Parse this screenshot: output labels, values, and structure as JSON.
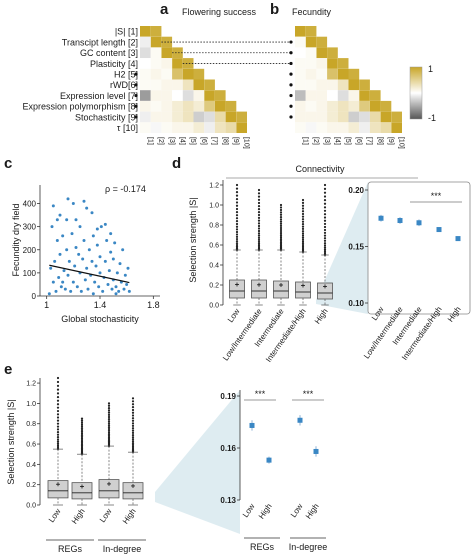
{
  "colors": {
    "gold": "#c8a628",
    "gray_dark": "#5a5a5a",
    "blue_point": "#3a87c4",
    "light_blue": "#d8e9ef",
    "box_fill": "#d0d0d0"
  },
  "panel_a": {
    "letter": "a",
    "title": "Flowering success",
    "row_labels": [
      "|S| [1]",
      "Transcipt length [2]",
      "GC content [3]",
      "Plasticity [4]",
      "H2 [5]",
      "rWD[6]",
      "Expression level [7]",
      "Expression polymorphism [8]",
      "Stochasticity [9]",
      "τ [10]"
    ],
    "col_labels": [
      "[1]",
      "[2]",
      "[3]",
      "[4]",
      "[5]",
      "[6]",
      "[7]",
      "[8]",
      "[9]",
      "[10]"
    ]
  },
  "panel_b": {
    "letter": "b",
    "title": "Fecundity",
    "col_labels": [
      "[1]",
      "[2]",
      "[3]",
      "[4]",
      "[5]",
      "[6]",
      "[7]",
      "[8]",
      "[9]",
      "[10]"
    ]
  },
  "colorbar": {
    "max_label": "1",
    "min_label": "-1"
  },
  "panel_c": {
    "letter": "c",
    "rho_label": "ρ = -0.174",
    "xlabel": "Global stochasticity",
    "ylabel": "Fecundity dry field",
    "xticks": [
      "1",
      "1.4",
      "1.8"
    ],
    "yticks": [
      "0",
      "100",
      "200",
      "300",
      "400"
    ]
  },
  "panel_d": {
    "letter": "d",
    "header": "Connectivity",
    "ylabel": "Selection strength |S|",
    "box_yticks": [
      "0.0",
      "0.2",
      "0.4",
      "0.6",
      "0.8",
      "1.0",
      "1.2"
    ],
    "categories": [
      "Low",
      "Low/Intermediate",
      "Intermediate",
      "Intermediate/High",
      "High"
    ],
    "zoom_yticks": [
      "0.10",
      "0.15",
      "0.20"
    ],
    "sig_label": "***"
  },
  "panel_e": {
    "letter": "e",
    "ylabel": "Selection strength |S|",
    "box_yticks": [
      "0.0",
      "0.2",
      "0.4",
      "0.6",
      "0.8",
      "1.0",
      "1.2"
    ],
    "categories": [
      "Low",
      "High",
      "Low",
      "High"
    ],
    "groups": [
      "REGs",
      "In-degree"
    ],
    "zoom_yticks": [
      "0.13",
      "0.16",
      "0.19"
    ],
    "sig_labels": [
      "***",
      "***"
    ]
  },
  "chart_data": [
    {
      "type": "heatmap",
      "title": "Flowering success",
      "labels": [
        "|S| [1]",
        "Transcipt length [2]",
        "GC content [3]",
        "Plasticity [4]",
        "H2 [5]",
        "rWD[6]",
        "Expression level [7]",
        "Expression polymorphism [8]",
        "Stochasticity [9]",
        "τ [10]"
      ],
      "scale": [
        -1,
        1
      ],
      "lower_triangle_cells": [
        [
          2,
          1,
          -0.1
        ],
        [
          3,
          1,
          -0.2
        ],
        [
          3,
          2,
          0.05
        ],
        [
          4,
          1,
          0.0
        ],
        [
          4,
          2,
          0.05
        ],
        [
          4,
          3,
          0.1
        ],
        [
          5,
          1,
          0.05
        ],
        [
          5,
          2,
          0.1
        ],
        [
          5,
          3,
          0.05
        ],
        [
          5,
          4,
          0.7
        ],
        [
          6,
          1,
          0.05
        ],
        [
          6,
          2,
          0.05
        ],
        [
          6,
          3,
          0.1
        ],
        [
          6,
          4,
          0.1
        ],
        [
          6,
          5,
          0.3
        ],
        [
          7,
          1,
          -0.6
        ],
        [
          7,
          2,
          0.1
        ],
        [
          7,
          3,
          0.1
        ],
        [
          7,
          4,
          0.0
        ],
        [
          7,
          5,
          -0.2
        ],
        [
          7,
          6,
          0.1
        ],
        [
          8,
          1,
          0.1
        ],
        [
          8,
          2,
          0.05
        ],
        [
          8,
          3,
          0.1
        ],
        [
          8,
          4,
          0.2
        ],
        [
          8,
          5,
          0.3
        ],
        [
          8,
          6,
          0.2
        ],
        [
          8,
          7,
          0.6
        ],
        [
          9,
          1,
          -0.1
        ],
        [
          9,
          2,
          0.1
        ],
        [
          9,
          3,
          0.1
        ],
        [
          9,
          4,
          0.2
        ],
        [
          9,
          5,
          0.3
        ],
        [
          9,
          6,
          -0.3
        ],
        [
          9,
          7,
          -0.2
        ],
        [
          9,
          8,
          0.4
        ],
        [
          10,
          1,
          0.05
        ],
        [
          10,
          2,
          -0.05
        ],
        [
          10,
          3,
          0.05
        ],
        [
          10,
          4,
          0.1
        ],
        [
          10,
          5,
          0.1
        ],
        [
          10,
          6,
          0.2
        ],
        [
          10,
          7,
          -0.1
        ],
        [
          10,
          8,
          0.3
        ],
        [
          10,
          9,
          0.4
        ]
      ]
    },
    {
      "type": "heatmap",
      "title": "Fecundity",
      "scale": [
        -1,
        1
      ],
      "lower_triangle_cells": [
        [
          2,
          1,
          0.05
        ],
        [
          3,
          1,
          0.0
        ],
        [
          3,
          2,
          0.05
        ],
        [
          4,
          1,
          0.05
        ],
        [
          4,
          2,
          0.05
        ],
        [
          4,
          3,
          0.1
        ],
        [
          5,
          1,
          0.05
        ],
        [
          5,
          2,
          0.1
        ],
        [
          5,
          3,
          0.05
        ],
        [
          5,
          4,
          0.7
        ],
        [
          6,
          1,
          0.05
        ],
        [
          6,
          2,
          0.05
        ],
        [
          6,
          3,
          0.1
        ],
        [
          6,
          4,
          0.1
        ],
        [
          6,
          5,
          0.3
        ],
        [
          7,
          1,
          -0.4
        ],
        [
          7,
          2,
          0.1
        ],
        [
          7,
          3,
          0.1
        ],
        [
          7,
          4,
          0.0
        ],
        [
          7,
          5,
          -0.2
        ],
        [
          7,
          6,
          0.1
        ],
        [
          8,
          1,
          0.1
        ],
        [
          8,
          2,
          0.05
        ],
        [
          8,
          3,
          0.1
        ],
        [
          8,
          4,
          0.2
        ],
        [
          8,
          5,
          0.3
        ],
        [
          8,
          6,
          0.2
        ],
        [
          8,
          7,
          0.6
        ],
        [
          9,
          1,
          0.1
        ],
        [
          9,
          2,
          0.1
        ],
        [
          9,
          3,
          0.1
        ],
        [
          9,
          4,
          0.2
        ],
        [
          9,
          5,
          0.3
        ],
        [
          9,
          6,
          -0.3
        ],
        [
          9,
          7,
          -0.2
        ],
        [
          9,
          8,
          0.4
        ],
        [
          10,
          1,
          0.05
        ],
        [
          10,
          2,
          -0.05
        ],
        [
          10,
          3,
          0.05
        ],
        [
          10,
          4,
          0.1
        ],
        [
          10,
          5,
          0.1
        ],
        [
          10,
          6,
          0.2
        ],
        [
          10,
          7,
          -0.1
        ],
        [
          10,
          8,
          0.3
        ],
        [
          10,
          9,
          0.4
        ]
      ]
    },
    {
      "type": "scatter",
      "xlabel": "Global stochasticity",
      "ylabel": "Fecundity dry field",
      "xlim": [
        0.95,
        1.85
      ],
      "ylim": [
        0,
        480
      ],
      "trend": {
        "x": [
          1.02,
          1.62
        ],
        "y": [
          133,
          58
        ]
      },
      "points": [
        [
          1.02,
          10
        ],
        [
          1.03,
          120
        ],
        [
          1.04,
          300
        ],
        [
          1.05,
          60
        ],
        [
          1.05,
          390
        ],
        [
          1.06,
          150
        ],
        [
          1.07,
          20
        ],
        [
          1.08,
          240
        ],
        [
          1.09,
          80
        ],
        [
          1.1,
          180
        ],
        [
          1.1,
          350
        ],
        [
          1.11,
          40
        ],
        [
          1.12,
          260
        ],
        [
          1.13,
          110
        ],
        [
          1.14,
          30
        ],
        [
          1.15,
          200
        ],
        [
          1.15,
          330
        ],
        [
          1.16,
          90
        ],
        [
          1.17,
          150
        ],
        [
          1.18,
          20
        ],
        [
          1.19,
          270
        ],
        [
          1.2,
          60
        ],
        [
          1.2,
          400
        ],
        [
          1.21,
          130
        ],
        [
          1.22,
          210
        ],
        [
          1.23,
          40
        ],
        [
          1.24,
          180
        ],
        [
          1.25,
          100
        ],
        [
          1.25,
          300
        ],
        [
          1.26,
          20
        ],
        [
          1.27,
          160
        ],
        [
          1.28,
          240
        ],
        [
          1.29,
          70
        ],
        [
          1.3,
          120
        ],
        [
          1.3,
          380
        ],
        [
          1.31,
          30
        ],
        [
          1.32,
          200
        ],
        [
          1.33,
          90
        ],
        [
          1.34,
          150
        ],
        [
          1.35,
          10
        ],
        [
          1.35,
          260
        ],
        [
          1.36,
          60
        ],
        [
          1.37,
          130
        ],
        [
          1.38,
          220
        ],
        [
          1.39,
          40
        ],
        [
          1.4,
          100
        ],
        [
          1.4,
          170
        ],
        [
          1.41,
          300
        ],
        [
          1.42,
          20
        ],
        [
          1.43,
          80
        ],
        [
          1.44,
          150
        ],
        [
          1.45,
          240
        ],
        [
          1.46,
          50
        ],
        [
          1.47,
          110
        ],
        [
          1.48,
          190
        ],
        [
          1.49,
          30
        ],
        [
          1.5,
          70
        ],
        [
          1.5,
          160
        ],
        [
          1.51,
          230
        ],
        [
          1.52,
          40
        ],
        [
          1.53,
          100
        ],
        [
          1.54,
          20
        ],
        [
          1.55,
          140
        ],
        [
          1.56,
          60
        ],
        [
          1.57,
          200
        ],
        [
          1.58,
          30
        ],
        [
          1.59,
          90
        ],
        [
          1.6,
          50
        ],
        [
          1.61,
          120
        ],
        [
          1.62,
          20
        ],
        [
          1.22,
          330
        ],
        [
          1.28,
          410
        ],
        [
          1.34,
          360
        ],
        [
          1.44,
          310
        ],
        [
          1.16,
          420
        ],
        [
          1.38,
          290
        ],
        [
          1.08,
          330
        ],
        [
          1.48,
          270
        ],
        [
          1.52,
          10
        ],
        [
          1.12,
          60
        ]
      ]
    },
    {
      "type": "box",
      "ylabel": "Selection strength |S|",
      "categories": [
        "Low",
        "Low/Intermediate",
        "Intermediate",
        "Intermediate/High",
        "High"
      ],
      "ylim": [
        0,
        1.25
      ],
      "boxes": [
        {
          "whisker_low": 0.0,
          "q1": 0.07,
          "median": 0.14,
          "q3": 0.25,
          "whisker_high": 0.55,
          "mean": 0.175,
          "outlier_max": 1.2
        },
        {
          "whisker_low": 0.0,
          "q1": 0.07,
          "median": 0.14,
          "q3": 0.25,
          "whisker_high": 0.55,
          "mean": 0.172,
          "outlier_max": 1.15
        },
        {
          "whisker_low": 0.0,
          "q1": 0.07,
          "median": 0.14,
          "q3": 0.24,
          "whisker_high": 0.55,
          "mean": 0.17,
          "outlier_max": 1.0
        },
        {
          "whisker_low": 0.0,
          "q1": 0.07,
          "median": 0.13,
          "q3": 0.23,
          "whisker_high": 0.53,
          "mean": 0.165,
          "outlier_max": 1.05
        },
        {
          "whisker_low": 0.0,
          "q1": 0.06,
          "median": 0.12,
          "q3": 0.22,
          "whisker_high": 0.5,
          "mean": 0.156,
          "outlier_max": 1.2
        }
      ]
    },
    {
      "type": "scatter",
      "ylabel": "Selection strength |S|",
      "categories": [
        "Low",
        "Low/Intermediate",
        "Intermediate",
        "Intermediate/High",
        "High"
      ],
      "ylim": [
        0.1,
        0.2
      ],
      "means": [
        0.175,
        0.173,
        0.171,
        0.165,
        0.157
      ],
      "errors": [
        0.003,
        0.003,
        0.003,
        0.002,
        0.002
      ]
    },
    {
      "type": "box",
      "ylabel": "Selection strength |S|",
      "categories": [
        "Low",
        "High",
        "Low",
        "High"
      ],
      "groups": [
        "REGs",
        "In-degree"
      ],
      "ylim": [
        0,
        1.25
      ],
      "boxes": [
        {
          "whisker_low": 0.0,
          "q1": 0.07,
          "median": 0.14,
          "q3": 0.24,
          "whisker_high": 0.55,
          "mean": 0.175,
          "outlier_max": 1.25
        },
        {
          "whisker_low": 0.0,
          "q1": 0.06,
          "median": 0.12,
          "q3": 0.22,
          "whisker_high": 0.5,
          "mean": 0.153,
          "outlier_max": 0.85
        },
        {
          "whisker_low": 0.0,
          "q1": 0.07,
          "median": 0.14,
          "q3": 0.25,
          "whisker_high": 0.58,
          "mean": 0.178,
          "outlier_max": 1.0
        },
        {
          "whisker_low": 0.0,
          "q1": 0.06,
          "median": 0.12,
          "q3": 0.22,
          "whisker_high": 0.52,
          "mean": 0.158,
          "outlier_max": 1.05
        }
      ]
    },
    {
      "type": "scatter",
      "ylabel": "Selection strength |S|",
      "categories": [
        "Low",
        "High",
        "Low",
        "High"
      ],
      "groups": [
        "REGs",
        "In-degree"
      ],
      "ylim": [
        0.13,
        0.19
      ],
      "means": [
        0.173,
        0.153,
        0.176,
        0.158
      ],
      "errors": [
        0.003,
        0.002,
        0.003,
        0.003
      ]
    }
  ]
}
